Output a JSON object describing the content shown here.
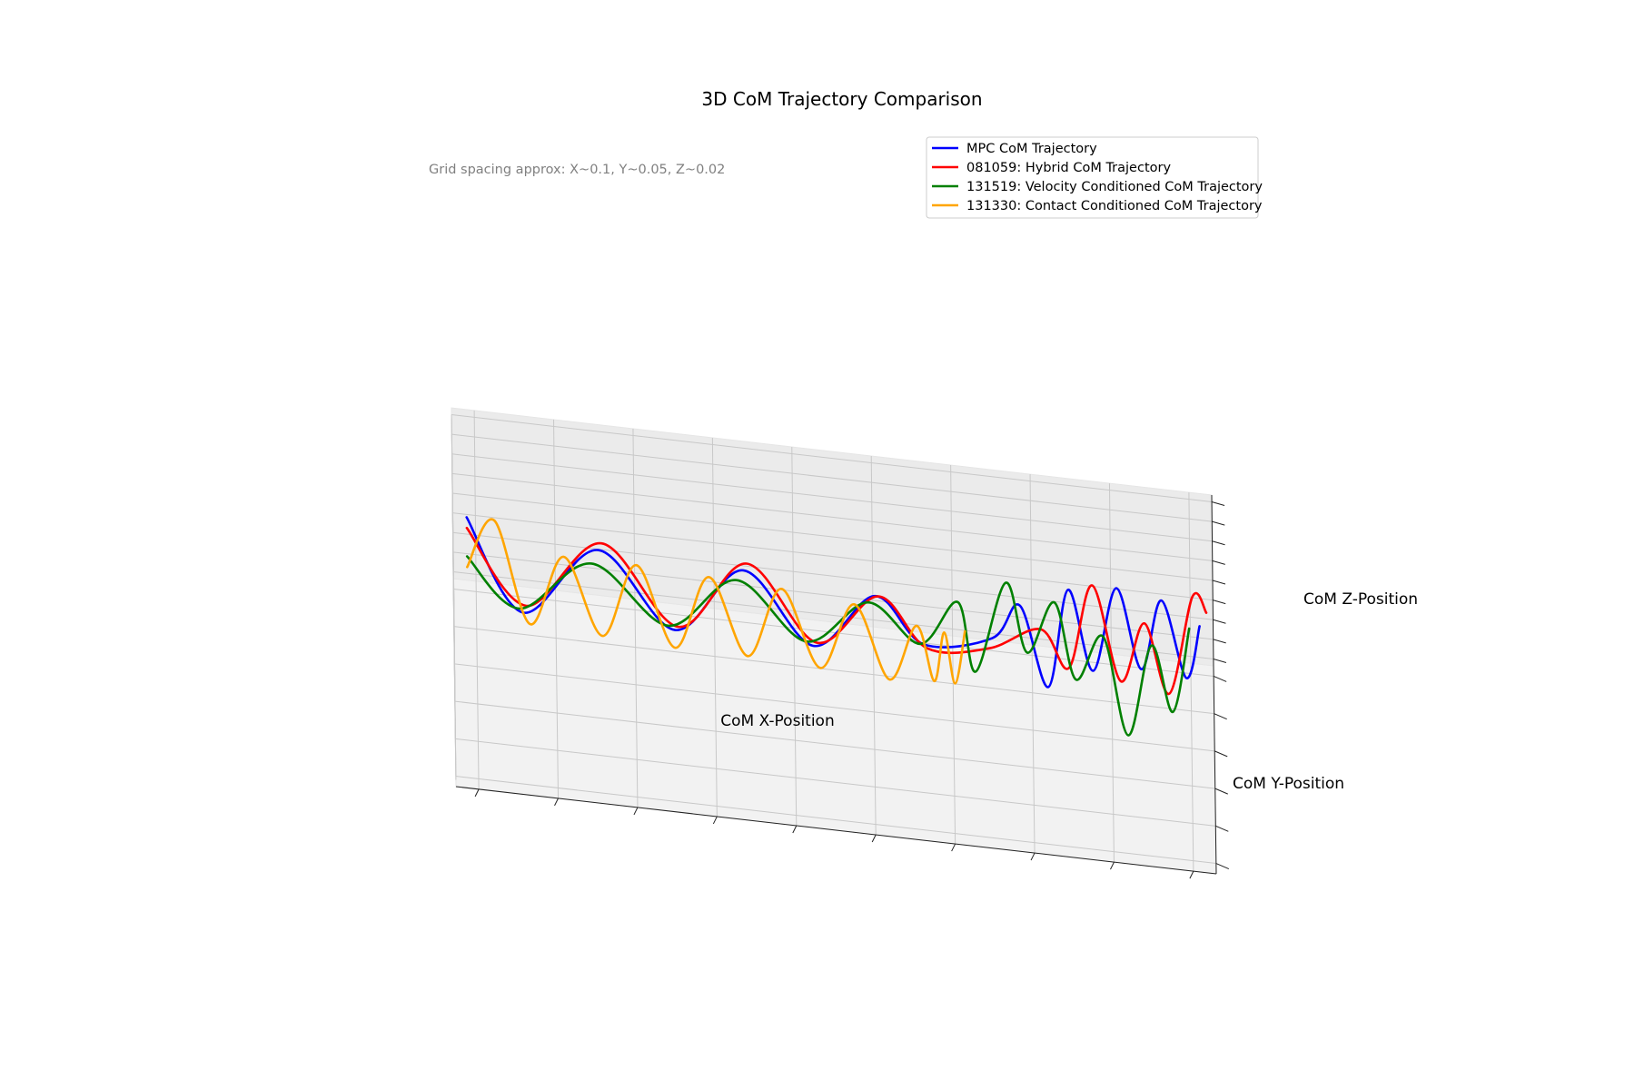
{
  "chart_data": {
    "type": "line",
    "projection": "3d",
    "title": "3D CoM Trajectory Comparison",
    "annotation": "Grid spacing approx: X~0.1, Y~0.05, Z~0.02",
    "xlabel": "CoM X-Position",
    "ylabel": "CoM Y-Position",
    "zlabel": "CoM Z-Position",
    "grid": true,
    "legend_position": "top-right",
    "tick_labels_shown": false,
    "series": [
      {
        "name": "MPC CoM Trajectory",
        "color": "#0000ff",
        "points": [
          [
            0.4,
            0.225,
            1
          ],
          [
            2.0,
            0.225,
            -0.25
          ],
          [
            4.2,
            0.225,
            0.75
          ],
          [
            6.4,
            0.225,
            -0.25
          ],
          [
            8.4,
            0.225,
            0.7
          ],
          [
            10.4,
            0.225,
            -0.25
          ],
          [
            12.2,
            0.225,
            0.55
          ],
          [
            13.6,
            0.225,
            -0.05
          ],
          [
            15.6,
            0.225,
            0.15
          ],
          [
            16.4,
            0.225,
            0.65
          ],
          [
            17.2,
            0.225,
            -0.45
          ],
          [
            17.8,
            0.225,
            0.95
          ],
          [
            18.5,
            0.225,
            -0.15
          ],
          [
            19.2,
            0.225,
            1.05
          ],
          [
            19.9,
            0.225,
            -0.05
          ],
          [
            20.5,
            0.225,
            0.95
          ],
          [
            21.2,
            0.225,
            -0.1
          ],
          [
            21.6,
            0.225,
            0.65
          ]
        ]
      },
      {
        "name": "081059: Hybrid CoM Trajectory",
        "color": "#ff0000",
        "points": [
          [
            0.4,
            0.225,
            0.85
          ],
          [
            2.1,
            0.225,
            -0.15
          ],
          [
            4.3,
            0.225,
            0.85
          ],
          [
            6.5,
            0.225,
            -0.2
          ],
          [
            8.5,
            0.225,
            0.8
          ],
          [
            10.5,
            0.225,
            -0.2
          ],
          [
            12.3,
            0.225,
            0.55
          ],
          [
            13.7,
            0.225,
            -0.1
          ],
          [
            15.5,
            0.225,
            0.0
          ],
          [
            17.0,
            0.225,
            0.35
          ],
          [
            17.8,
            0.225,
            -0.15
          ],
          [
            18.5,
            0.225,
            1.05
          ],
          [
            19.3,
            0.225,
            -0.25
          ],
          [
            20.0,
            0.225,
            0.6
          ],
          [
            20.7,
            0.225,
            -0.35
          ],
          [
            21.4,
            0.225,
            1.05
          ],
          [
            21.8,
            0.225,
            0.85
          ]
        ]
      },
      {
        "name": "131519: Velocity Conditioned CoM Trajectory",
        "color": "#008000",
        "points": [
          [
            0.4,
            0.225,
            0.45
          ],
          [
            1.9,
            0.225,
            -0.2
          ],
          [
            4.0,
            0.225,
            0.55
          ],
          [
            6.2,
            0.225,
            -0.2
          ],
          [
            8.2,
            0.225,
            0.55
          ],
          [
            10.2,
            0.225,
            -0.2
          ],
          [
            12.0,
            0.225,
            0.45
          ],
          [
            13.5,
            0.225,
            -0.05
          ],
          [
            14.6,
            0.225,
            0.6
          ],
          [
            15.1,
            0.225,
            -0.35
          ],
          [
            16.0,
            0.225,
            0.95
          ],
          [
            16.6,
            0.225,
            0.0
          ],
          [
            17.4,
            0.225,
            0.75
          ],
          [
            18.0,
            0.225,
            -0.3
          ],
          [
            18.8,
            0.225,
            0.35
          ],
          [
            19.5,
            0.225,
            -1.0
          ],
          [
            20.2,
            0.225,
            0.3
          ],
          [
            20.8,
            0.225,
            -0.6
          ],
          [
            21.3,
            0.225,
            0.6
          ]
        ]
      },
      {
        "name": "131330: Contact Conditioned CoM Trajectory",
        "color": "#ffa500",
        "points": [
          [
            0.4,
            0.225,
            0.3
          ],
          [
            1.2,
            0.225,
            1.0
          ],
          [
            2.2,
            0.225,
            -0.4
          ],
          [
            3.2,
            0.225,
            0.6
          ],
          [
            4.3,
            0.225,
            -0.45
          ],
          [
            5.3,
            0.225,
            0.6
          ],
          [
            6.4,
            0.225,
            -0.5
          ],
          [
            7.4,
            0.225,
            0.55
          ],
          [
            8.5,
            0.225,
            -0.5
          ],
          [
            9.5,
            0.225,
            0.5
          ],
          [
            10.6,
            0.225,
            -0.55
          ],
          [
            11.6,
            0.225,
            0.4
          ],
          [
            12.6,
            0.225,
            -0.6
          ],
          [
            13.4,
            0.225,
            0.2
          ],
          [
            13.9,
            0.225,
            -0.55
          ],
          [
            14.2,
            0.225,
            0.15
          ],
          [
            14.5,
            0.225,
            -0.55
          ],
          [
            14.8,
            0.225,
            0.2
          ]
        ]
      }
    ]
  },
  "legend": {
    "items": [
      {
        "label": "MPC CoM Trajectory",
        "color": "#0000ff"
      },
      {
        "label": "081059: Hybrid CoM Trajectory",
        "color": "#ff0000"
      },
      {
        "label": "131519: Velocity Conditioned CoM Trajectory",
        "color": "#008000"
      },
      {
        "label": "131330: Contact Conditioned CoM Trajectory",
        "color": "#ffa500"
      }
    ]
  }
}
